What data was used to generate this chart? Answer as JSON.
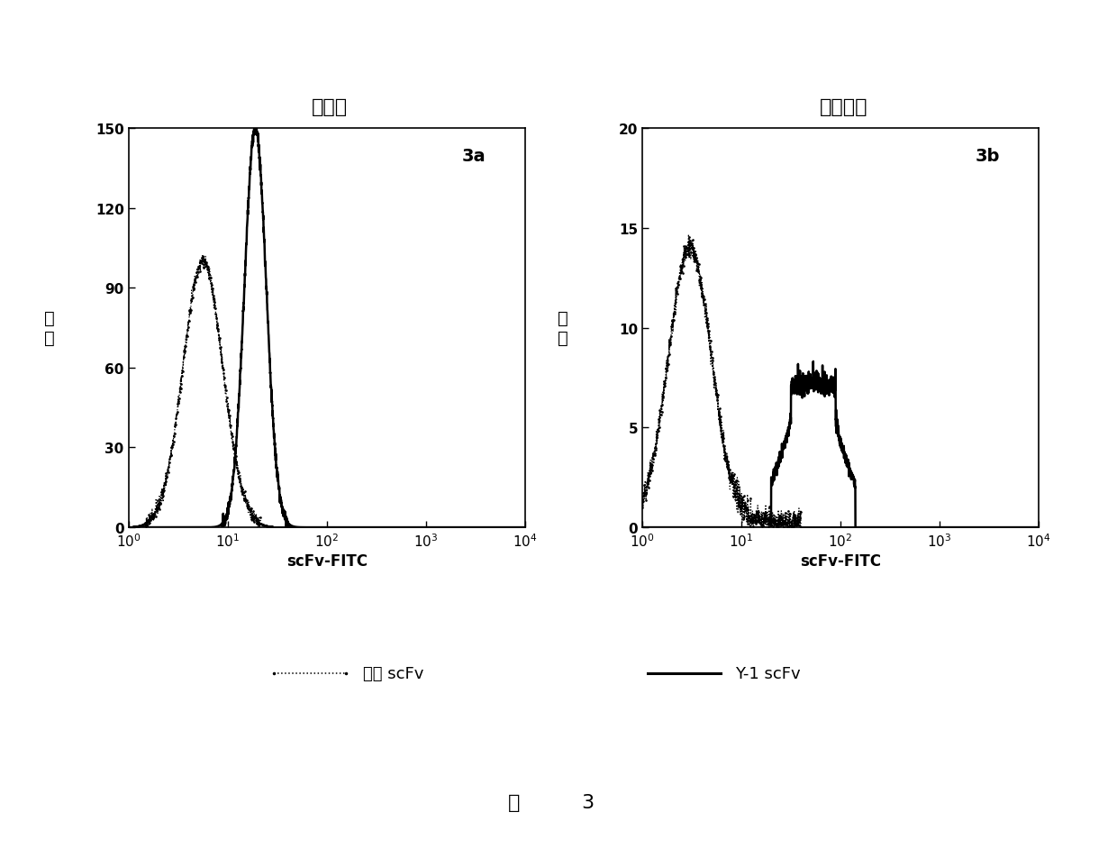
{
  "fig_width": 12.4,
  "fig_height": 9.53,
  "background_color": "#ffffff",
  "panel_a_title": "血小板",
  "panel_b_title": "单核细胞",
  "ylabel_line1": "计",
  "ylabel_line2": "数",
  "xlabel": "scFv-FITC",
  "panel_a_label": "3a",
  "panel_b_label": "3b",
  "panel_a_ylim": [
    0,
    150
  ],
  "panel_a_yticks": [
    0,
    30,
    60,
    90,
    120,
    150
  ],
  "panel_b_ylim": [
    0,
    20
  ],
  "panel_b_yticks": [
    0,
    5,
    10,
    15,
    20
  ],
  "legend_dotted_label": "对照 scFv",
  "legend_solid_label": "Y-1 scFv",
  "caption_char": "图",
  "caption_num": "3",
  "dotted_color": "#000000",
  "solid_color": "#000000"
}
